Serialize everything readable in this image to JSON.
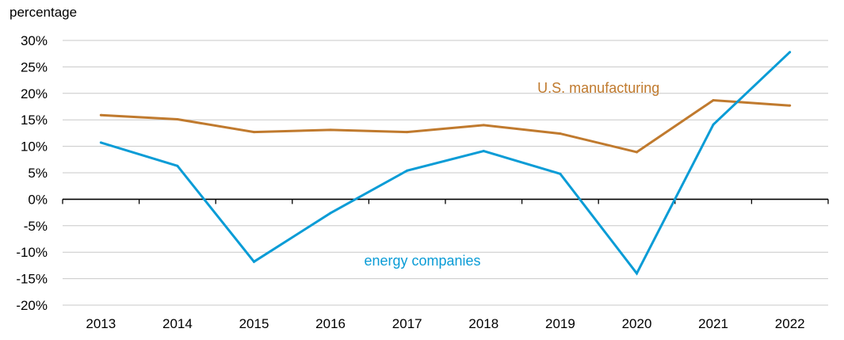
{
  "chart_data": {
    "type": "line",
    "unit_label": "percentage",
    "categories": [
      "2013",
      "2014",
      "2015",
      "2016",
      "2017",
      "2018",
      "2019",
      "2020",
      "2021",
      "2022"
    ],
    "ylim": [
      -20,
      30
    ],
    "yticks": [
      30,
      25,
      20,
      15,
      10,
      5,
      0,
      -5,
      -10,
      -15,
      -20
    ],
    "ytick_labels": [
      "30%",
      "25%",
      "20%",
      "15%",
      "10%",
      "5%",
      "0%",
      "-5%",
      "-10%",
      "-15%",
      "-20%"
    ],
    "grid": true,
    "series": [
      {
        "name": "U.S. manufacturing",
        "color": "#C07A2E",
        "values": [
          15.9,
          15.1,
          12.7,
          13.1,
          12.7,
          14.0,
          12.4,
          8.9,
          18.7,
          17.7
        ]
      },
      {
        "name": "energy companies",
        "color": "#0A9CD6",
        "values": [
          10.7,
          6.3,
          -11.8,
          -2.6,
          5.4,
          9.1,
          4.8,
          -14.0,
          14.1,
          27.8
        ]
      }
    ],
    "annotations": [
      {
        "text": "U.S. manufacturing",
        "series": 0,
        "anchor_x": 7.0,
        "anchor_y": 21
      },
      {
        "text": "energy companies",
        "series": 1,
        "anchor_x": 4.7,
        "anchor_y": -11.6
      }
    ]
  }
}
